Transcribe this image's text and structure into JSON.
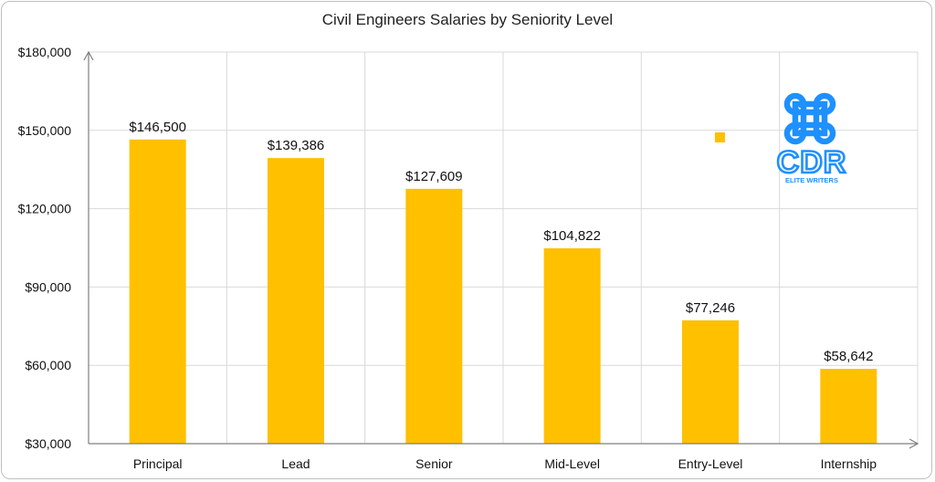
{
  "chart_data": {
    "type": "bar",
    "title": "Civil Engineers Salaries by Seniority Level",
    "categories": [
      "Principal",
      "Lead",
      "Senior",
      "Mid-Level",
      "Entry-Level",
      "Internship"
    ],
    "values": [
      146500,
      139386,
      127609,
      104822,
      77246,
      58642
    ],
    "value_labels": [
      "$146,500",
      "$139,386",
      "$127,609",
      "$104,822",
      "$77,246",
      "$58,642"
    ],
    "ylim": [
      30000,
      180000
    ],
    "yticks": [
      30000,
      60000,
      90000,
      120000,
      150000,
      180000
    ],
    "ytick_labels": [
      "$30,000",
      "$60,000",
      "$90,000",
      "$120,000",
      "$150,000",
      "$180,000"
    ],
    "xlabel": "",
    "ylabel": "",
    "grid": true,
    "bar_color": "#FFC000"
  },
  "logo": {
    "text": "CDR",
    "subtext": "ELITE WRITERS",
    "color": "#1E90FF"
  },
  "colors": {
    "grid": "#d9d9d9",
    "axis": "#7f7f7f",
    "marker": "#FFC000"
  }
}
